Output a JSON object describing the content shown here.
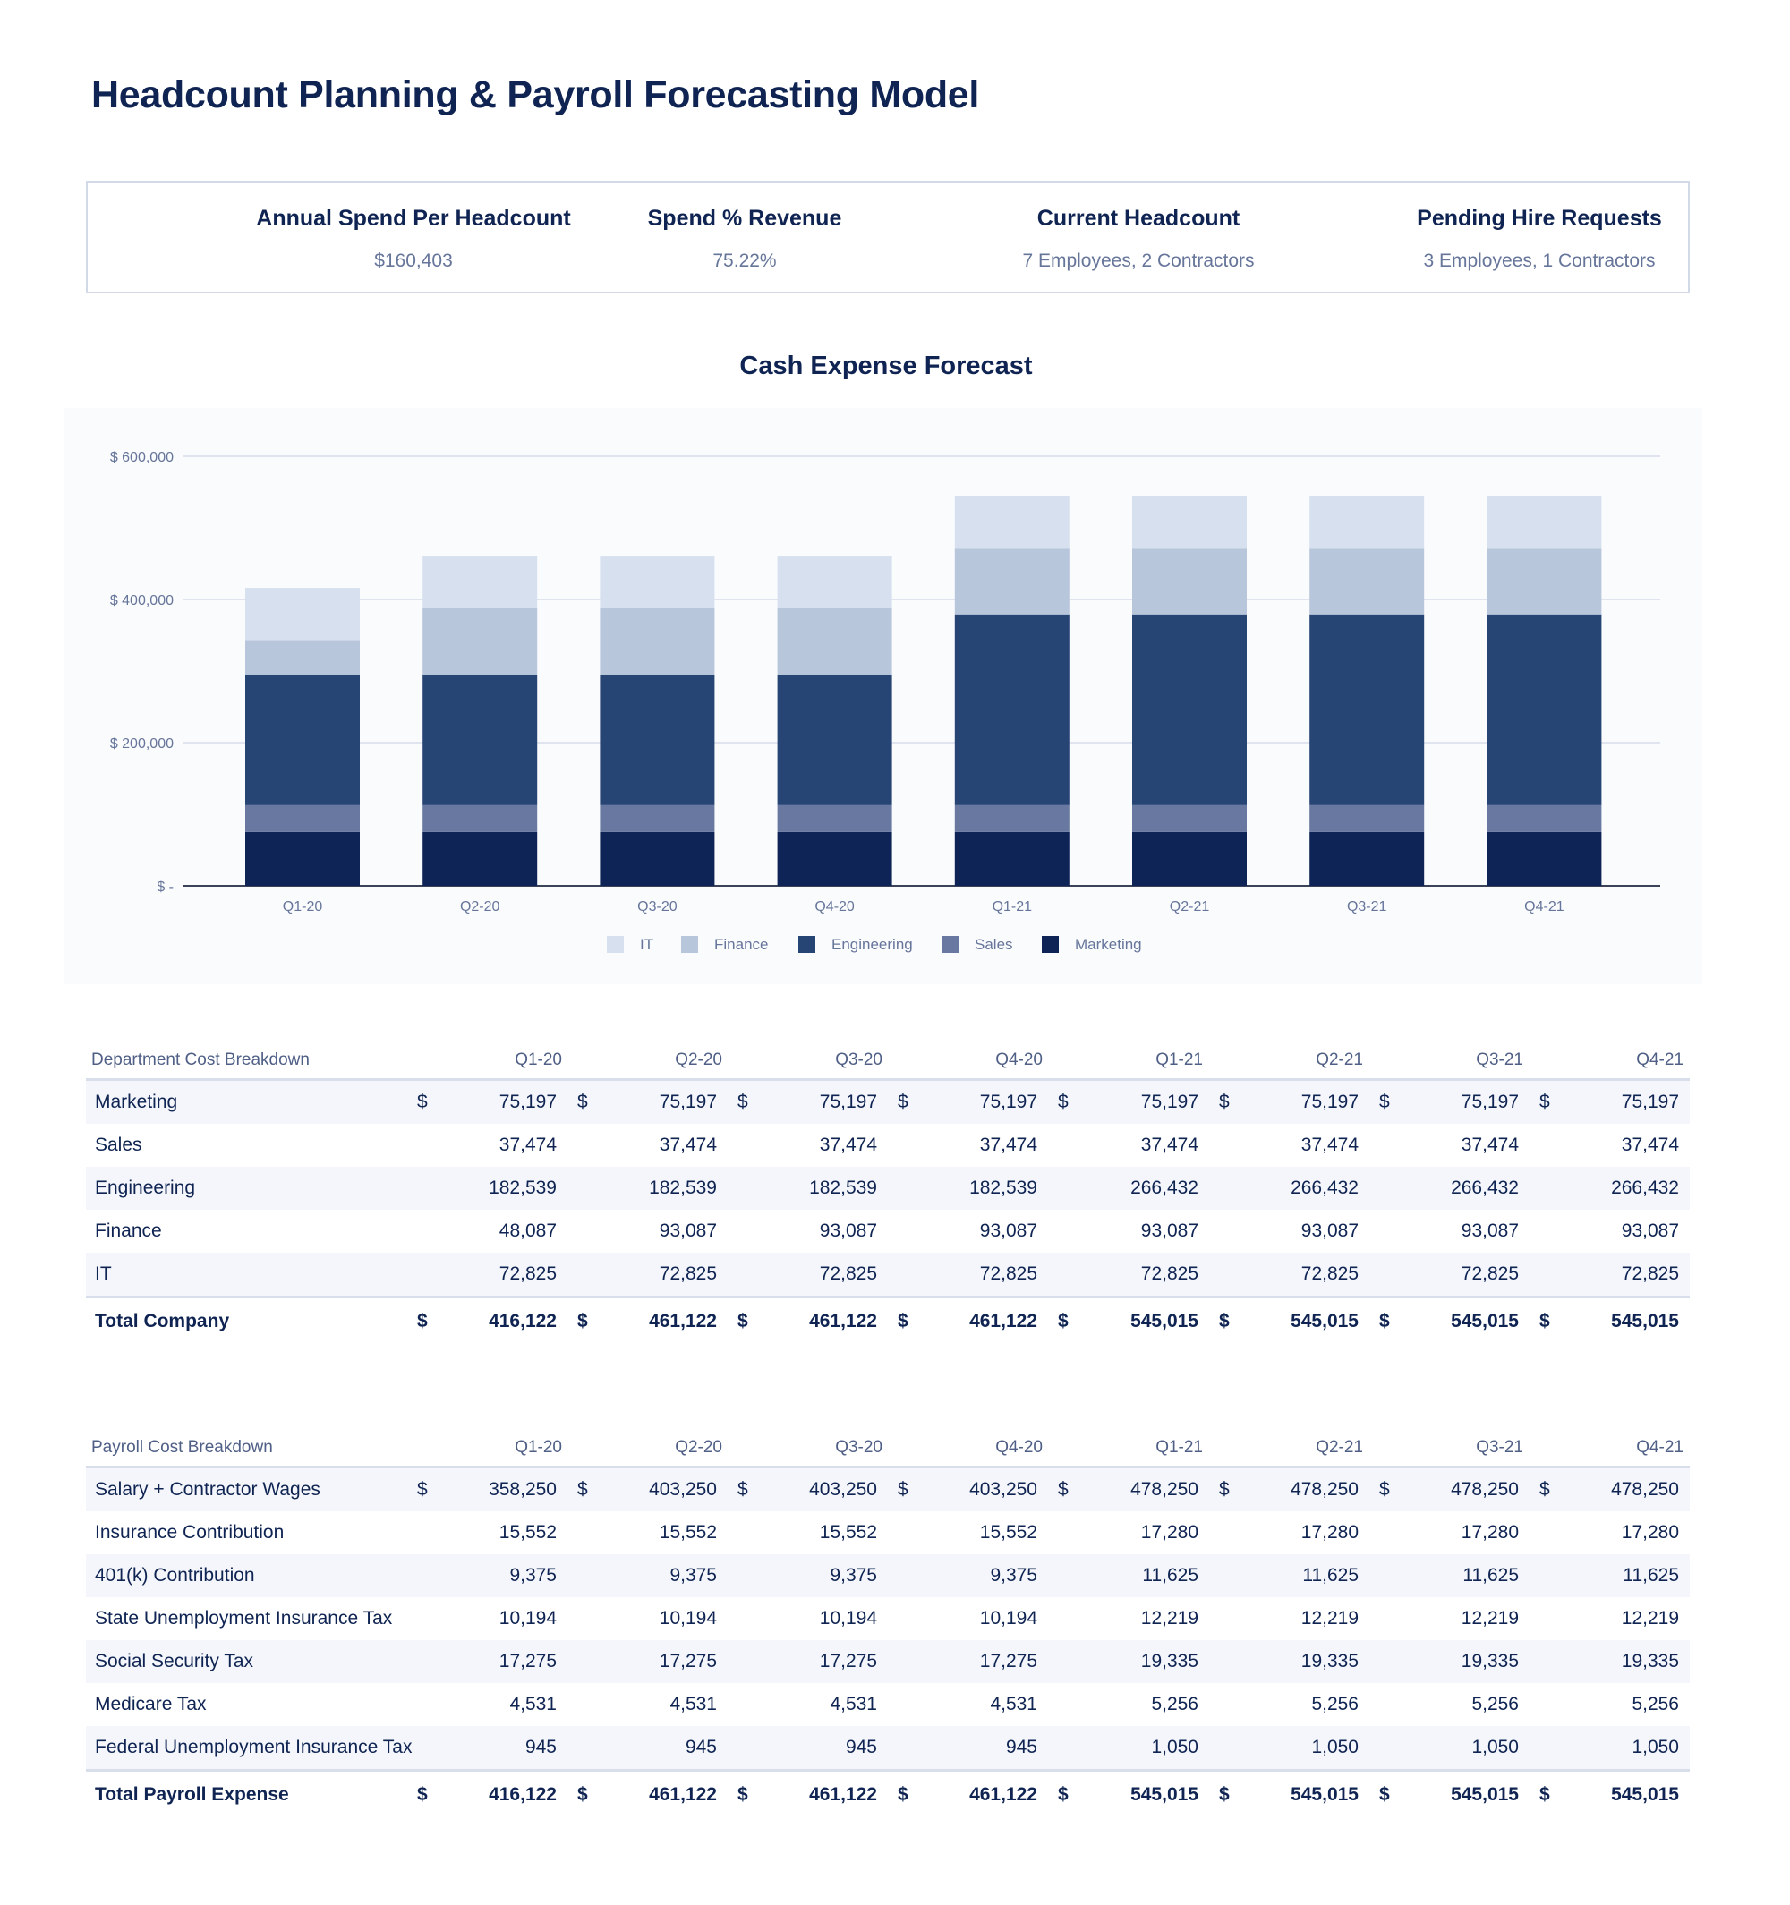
{
  "title": "Headcount Planning & Payroll Forecasting Model",
  "kpis": [
    {
      "label": "Annual Spend Per Headcount",
      "value": "$160,403"
    },
    {
      "label": "Spend % Revenue",
      "value": "75.22%"
    },
    {
      "label": "Current Headcount",
      "value": "7 Employees, 2 Contractors"
    },
    {
      "label": "Pending Hire Requests",
      "value": "3 Employees, 1 Contractors"
    }
  ],
  "chart_data": {
    "type": "bar",
    "stacked": true,
    "title": "Cash Expense Forecast",
    "xlabel": "",
    "ylabel": "",
    "ylim": [
      0,
      600000
    ],
    "yticks": [
      0,
      200000,
      400000,
      600000
    ],
    "ytick_labels": [
      "$ -",
      "$ 200,000",
      "$ 400,000",
      "$ 600,000"
    ],
    "grid": true,
    "legend_position": "bottom",
    "categories": [
      "Q1-20",
      "Q2-20",
      "Q3-20",
      "Q4-20",
      "Q1-21",
      "Q2-21",
      "Q3-21",
      "Q4-21"
    ],
    "series": [
      {
        "name": "Marketing",
        "color": "#0f2456",
        "values": [
          75197,
          75197,
          75197,
          75197,
          75197,
          75197,
          75197,
          75197
        ]
      },
      {
        "name": "Sales",
        "color": "#6878a0",
        "values": [
          37474,
          37474,
          37474,
          37474,
          37474,
          37474,
          37474,
          37474
        ]
      },
      {
        "name": "Engineering",
        "color": "#264474",
        "values": [
          182539,
          182539,
          182539,
          182539,
          266432,
          266432,
          266432,
          266432
        ]
      },
      {
        "name": "Finance",
        "color": "#b8c6dc",
        "values": [
          48087,
          93087,
          93087,
          93087,
          93087,
          93087,
          93087,
          93087
        ]
      },
      {
        "name": "IT",
        "color": "#d6e0ee",
        "values": [
          72825,
          72825,
          72825,
          72825,
          72825,
          72825,
          72825,
          72825
        ]
      }
    ],
    "legend_order": [
      "IT",
      "Finance",
      "Engineering",
      "Sales",
      "Marketing"
    ]
  },
  "dept_table": {
    "header": "Department Cost Breakdown",
    "quarters": [
      "Q1-20",
      "Q2-20",
      "Q3-20",
      "Q4-20",
      "Q1-21",
      "Q2-21",
      "Q3-21",
      "Q4-21"
    ],
    "currency_symbol": "$",
    "rows": [
      {
        "label": "Marketing",
        "values": [
          "75,197",
          "75,197",
          "75,197",
          "75,197",
          "75,197",
          "75,197",
          "75,197",
          "75,197"
        ],
        "currency": true
      },
      {
        "label": "Sales",
        "values": [
          "37,474",
          "37,474",
          "37,474",
          "37,474",
          "37,474",
          "37,474",
          "37,474",
          "37,474"
        ],
        "currency": false
      },
      {
        "label": "Engineering",
        "values": [
          "182,539",
          "182,539",
          "182,539",
          "182,539",
          "266,432",
          "266,432",
          "266,432",
          "266,432"
        ],
        "currency": false
      },
      {
        "label": "Finance",
        "values": [
          "48,087",
          "93,087",
          "93,087",
          "93,087",
          "93,087",
          "93,087",
          "93,087",
          "93,087"
        ],
        "currency": false
      },
      {
        "label": "IT",
        "values": [
          "72,825",
          "72,825",
          "72,825",
          "72,825",
          "72,825",
          "72,825",
          "72,825",
          "72,825"
        ],
        "currency": false
      }
    ],
    "total": {
      "label": "Total Company",
      "values": [
        "416,122",
        "461,122",
        "461,122",
        "461,122",
        "545,015",
        "545,015",
        "545,015",
        "545,015"
      ]
    }
  },
  "payroll_table": {
    "header": "Payroll Cost Breakdown",
    "quarters": [
      "Q1-20",
      "Q2-20",
      "Q3-20",
      "Q4-20",
      "Q1-21",
      "Q2-21",
      "Q3-21",
      "Q4-21"
    ],
    "currency_symbol": "$",
    "rows": [
      {
        "label": "Salary + Contractor Wages",
        "values": [
          "358,250",
          "403,250",
          "403,250",
          "403,250",
          "478,250",
          "478,250",
          "478,250",
          "478,250"
        ],
        "currency": true
      },
      {
        "label": "Insurance Contribution",
        "values": [
          "15,552",
          "15,552",
          "15,552",
          "15,552",
          "17,280",
          "17,280",
          "17,280",
          "17,280"
        ],
        "currency": false
      },
      {
        "label": "401(k) Contribution",
        "values": [
          "9,375",
          "9,375",
          "9,375",
          "9,375",
          "11,625",
          "11,625",
          "11,625",
          "11,625"
        ],
        "currency": false
      },
      {
        "label": "State Unemployment Insurance Tax",
        "values": [
          "10,194",
          "10,194",
          "10,194",
          "10,194",
          "12,219",
          "12,219",
          "12,219",
          "12,219"
        ],
        "currency": false
      },
      {
        "label": "Social Security Tax",
        "values": [
          "17,275",
          "17,275",
          "17,275",
          "17,275",
          "19,335",
          "19,335",
          "19,335",
          "19,335"
        ],
        "currency": false
      },
      {
        "label": "Medicare Tax",
        "values": [
          "4,531",
          "4,531",
          "4,531",
          "4,531",
          "5,256",
          "5,256",
          "5,256",
          "5,256"
        ],
        "currency": false
      },
      {
        "label": "Federal Unemployment Insurance Tax",
        "values": [
          "945",
          "945",
          "945",
          "945",
          "1,050",
          "1,050",
          "1,050",
          "1,050"
        ],
        "currency": false
      }
    ],
    "total": {
      "label": "Total Payroll Expense",
      "values": [
        "416,122",
        "461,122",
        "461,122",
        "461,122",
        "545,015",
        "545,015",
        "545,015",
        "545,015"
      ]
    }
  }
}
